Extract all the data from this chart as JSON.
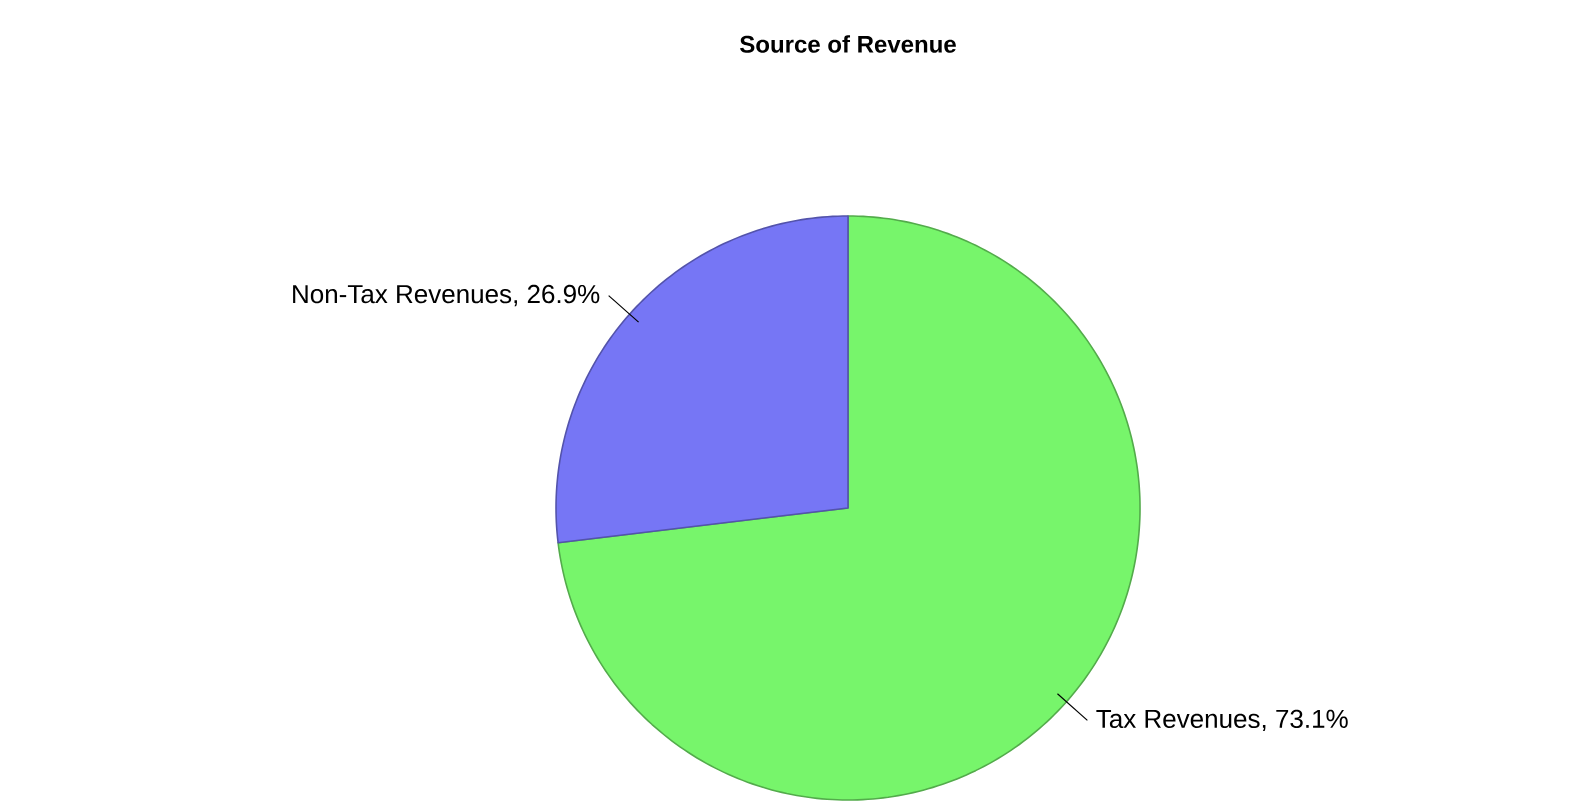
{
  "chart_data": {
    "type": "pie",
    "title": "Source of Revenue",
    "categories": [
      "Tax Revenues",
      "Non-Tax Revenues"
    ],
    "values": [
      73.1,
      26.9
    ],
    "value_labels": [
      ", 73.1%",
      ", 26.9%"
    ],
    "colors": [
      "#77f56b",
      "#7676f5"
    ]
  }
}
